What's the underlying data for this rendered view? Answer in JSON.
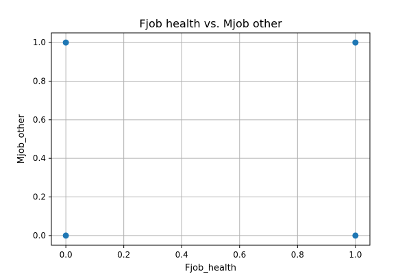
{
  "chart_data": {
    "type": "scatter",
    "title": "Fjob health vs. Mjob other",
    "xlabel": "Fjob_health",
    "ylabel": "Mjob_other",
    "xlim": [
      -0.05,
      1.05
    ],
    "ylim": [
      -0.05,
      1.05
    ],
    "xticks": [
      0.0,
      0.2,
      0.4,
      0.6,
      0.8,
      1.0
    ],
    "xtick_labels": [
      "0.0",
      "0.2",
      "0.4",
      "0.6",
      "0.8",
      "1.0"
    ],
    "yticks": [
      0.0,
      0.2,
      0.4,
      0.6,
      0.8,
      1.0
    ],
    "ytick_labels": [
      "0.0",
      "0.2",
      "0.4",
      "0.6",
      "0.8",
      "1.0"
    ],
    "grid": true,
    "legend": "none",
    "colors": {
      "marker": "#1f77b4"
    },
    "points": [
      {
        "x": 0,
        "y": 0
      },
      {
        "x": 0,
        "y": 1
      },
      {
        "x": 1,
        "y": 0
      },
      {
        "x": 1,
        "y": 1
      }
    ]
  }
}
